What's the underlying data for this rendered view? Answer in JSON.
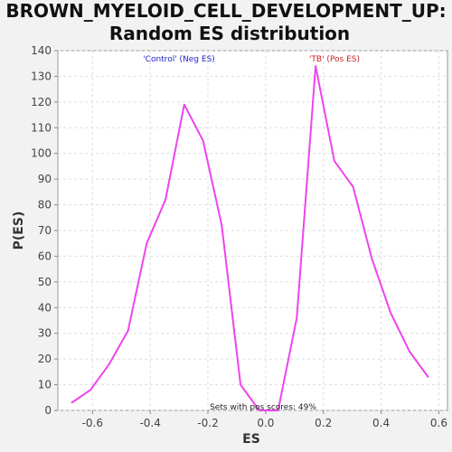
{
  "chart_data": {
    "type": "line",
    "title_line1": "BROWN_MYELOID_CELL_DEVELOPMENT_UP:",
    "title_line2": "Random ES distribution",
    "xlabel": "ES",
    "ylabel": "P(ES)",
    "xlim": [
      -0.72,
      0.63
    ],
    "ylim": [
      0,
      140
    ],
    "x_ticks": [
      -0.6,
      -0.4,
      -0.2,
      0.0,
      0.2,
      0.4,
      0.6
    ],
    "x_tick_labels": [
      "-0.6",
      "-0.4",
      "-0.2",
      "0.0",
      "0.2",
      "0.4",
      "0.6"
    ],
    "y_ticks": [
      0,
      10,
      20,
      30,
      40,
      50,
      60,
      70,
      80,
      90,
      100,
      110,
      120,
      130,
      140
    ],
    "y_tick_labels": [
      "0",
      "10",
      "20",
      "30",
      "40",
      "50",
      "60",
      "70",
      "80",
      "90",
      "100",
      "110",
      "120",
      "130",
      "140"
    ],
    "grid": true,
    "series": [
      {
        "color": "#ee44ee",
        "x": [
          -0.672,
          -0.607,
          -0.542,
          -0.477,
          -0.412,
          -0.347,
          -0.282,
          -0.217,
          -0.152,
          -0.087,
          -0.022,
          0.043,
          0.108,
          0.173,
          0.238,
          0.303,
          0.368,
          0.433,
          0.498,
          0.563
        ],
        "y": [
          3,
          8,
          18,
          31,
          65,
          82,
          119,
          105,
          72,
          10,
          0,
          0,
          36,
          134,
          97,
          87,
          59,
          38,
          23,
          13
        ]
      }
    ],
    "annotations": {
      "neg_label": "'Control' (Neg ES)",
      "pos_label": "'TB' (Pos ES)",
      "footer": "Sets with pos scores: 49%"
    },
    "colors": {
      "neg_label": "#2222cc",
      "pos_label": "#cc2222",
      "plot_bg": "#ffffff",
      "page_bg": "#f2f2f2",
      "grid": "#dddddd"
    }
  }
}
